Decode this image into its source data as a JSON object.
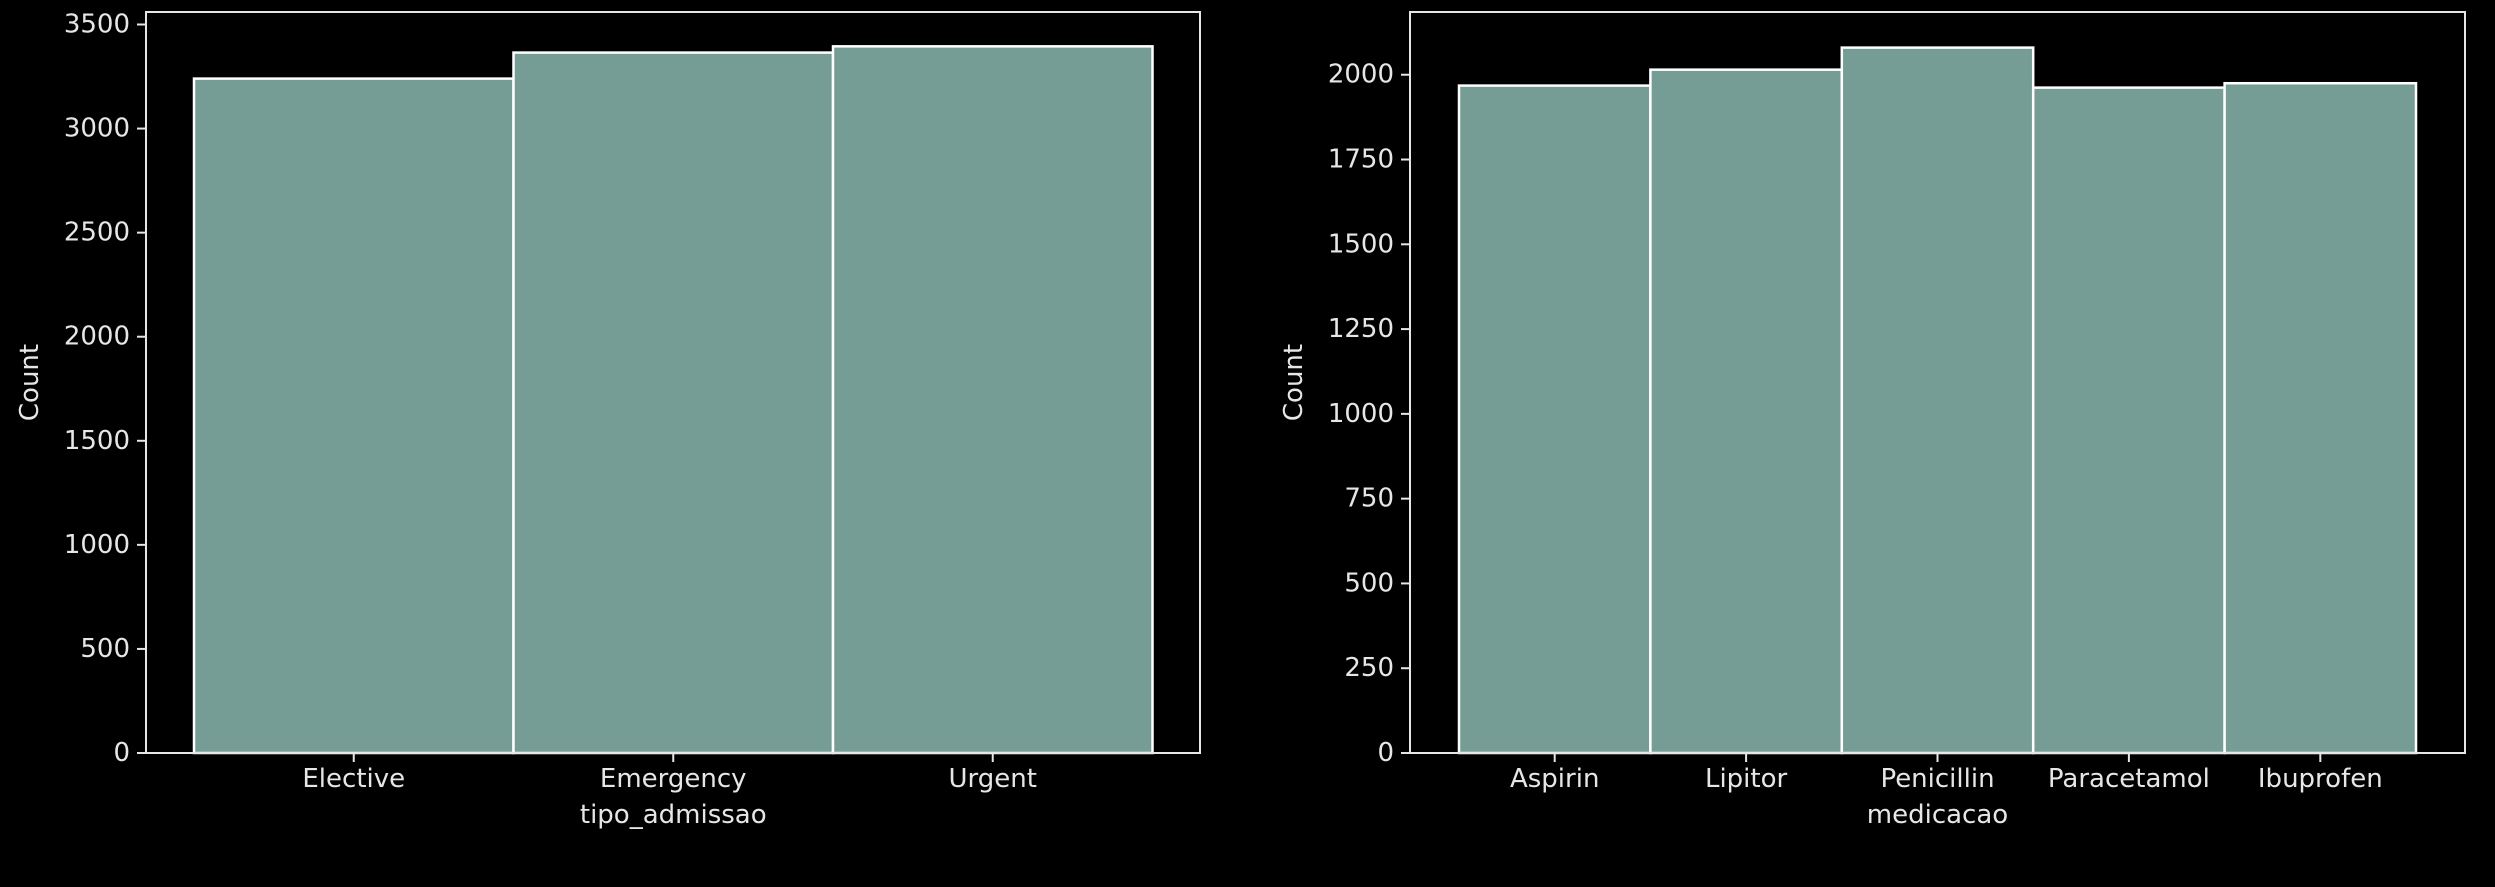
{
  "style": {
    "background": "#000000",
    "bar_fill": "#759c95",
    "bar_edge": "#ffffff",
    "axis_color": "#e6e6e6",
    "text_color": "#e6e6e6"
  },
  "chart_data": [
    {
      "type": "bar",
      "title": "",
      "xlabel": "tipo_admissao",
      "ylabel": "Count",
      "categories": [
        "Elective",
        "Emergency",
        "Urgent"
      ],
      "values": [
        3240,
        3365,
        3395
      ],
      "ylim": [
        0,
        3560
      ],
      "yticks": [
        0,
        500,
        1000,
        1500,
        2000,
        2500,
        3000,
        3500
      ],
      "ytick_labels": [
        "0",
        "500",
        "1000",
        "1500",
        "2000",
        "2500",
        "3000",
        "3500"
      ],
      "grid": false,
      "legend": "none"
    },
    {
      "type": "bar",
      "title": "",
      "xlabel": "medicacao",
      "ylabel": "Count",
      "categories": [
        "Aspirin",
        "Lipitor",
        "Penicillin",
        "Paracetamol",
        "Ibuprofen"
      ],
      "values": [
        1968,
        2015,
        2080,
        1962,
        1975
      ],
      "ylim": [
        0,
        2185
      ],
      "yticks": [
        0,
        250,
        500,
        750,
        1000,
        1250,
        1500,
        1750,
        2000
      ],
      "ytick_labels": [
        "0",
        "250",
        "500",
        "750",
        "1000",
        "1250",
        "1500",
        "1750",
        "2000"
      ],
      "grid": false,
      "legend": "none"
    }
  ]
}
